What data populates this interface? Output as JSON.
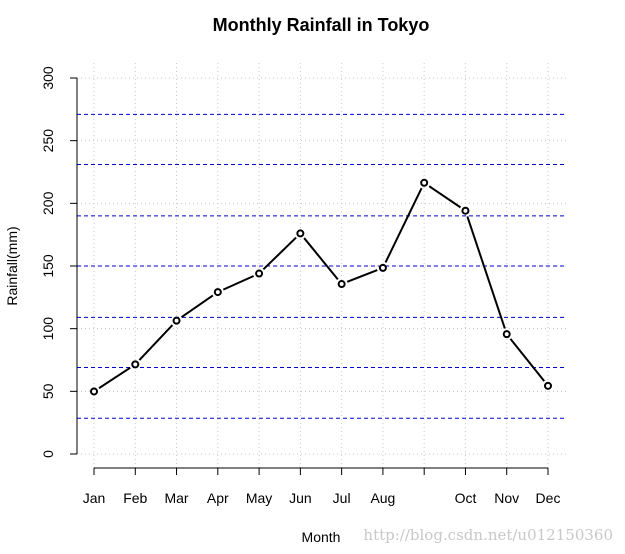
{
  "chart_data": {
    "type": "line",
    "title": "Monthly Rainfall in Tokyo",
    "xlabel": "Month",
    "ylabel": "Rainfall(mm)",
    "categories": [
      "Jan",
      "Feb",
      "Mar",
      "Apr",
      "May",
      "Jun",
      "Jul",
      "Aug",
      "",
      "Oct",
      "Nov",
      "Dec"
    ],
    "values": [
      49.9,
      71.5,
      106.4,
      129.2,
      144.0,
      176.0,
      135.6,
      148.5,
      216.4,
      194.1,
      95.6,
      54.4
    ],
    "ylim": [
      0,
      300
    ],
    "yticks": [
      0,
      50,
      100,
      150,
      200,
      250,
      300
    ],
    "grid": true,
    "reference_lines": [
      28.5,
      69,
      109,
      150,
      190,
      231,
      271
    ],
    "colors": {
      "line": "#000000",
      "grid": "#c8c8c8",
      "reference": "#0000cd"
    }
  },
  "watermark": "http://blog.csdn.net/u012150360"
}
